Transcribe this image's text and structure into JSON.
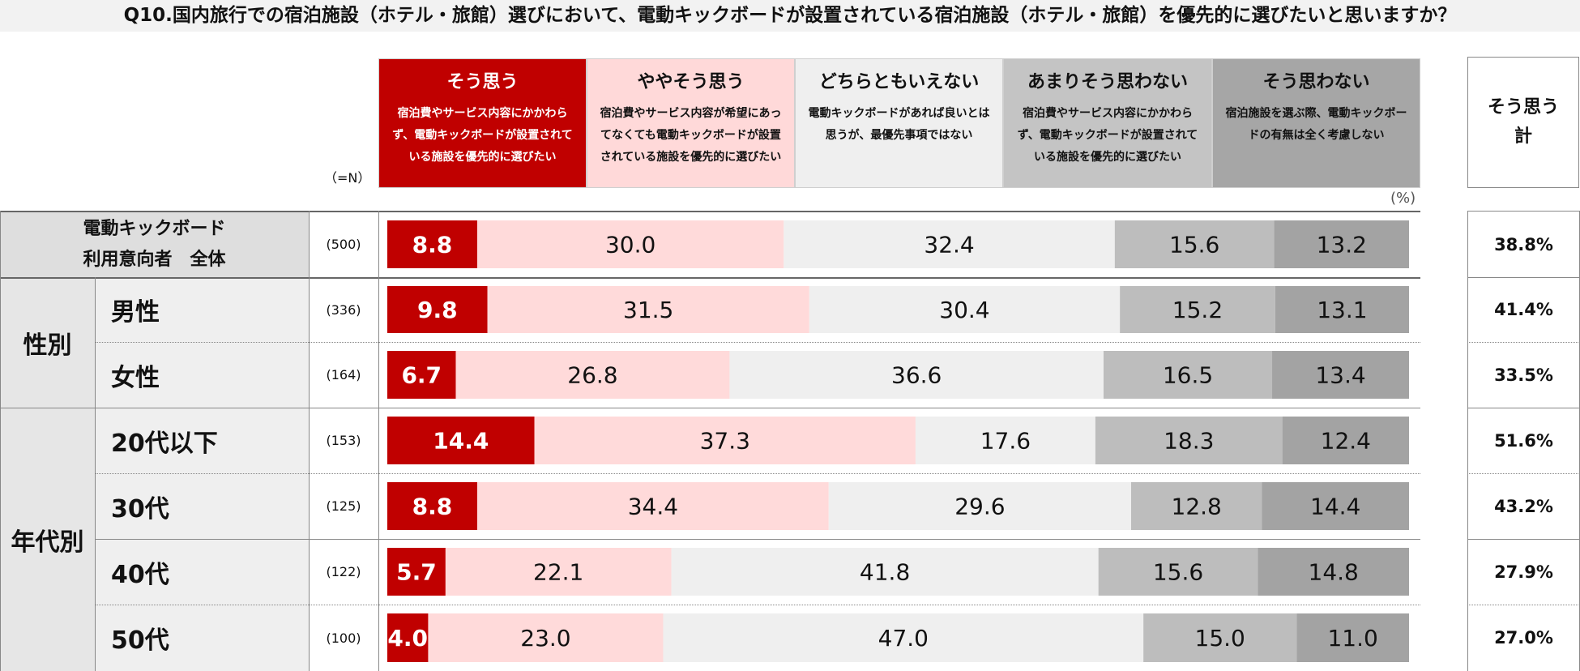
{
  "title": "Q10.国内旅行での宿泊施設（ホテル・旅館）選びにおいて、電動キックボードが設置されている宿泊施設（ホテル・旅館）を優先的に選びたいと思いますか？",
  "n_label": "（=N）",
  "percent_unit": "(%)",
  "total_header": [
    "そう思う",
    "計"
  ],
  "categories": [
    {
      "label": "そう思う",
      "desc": [
        "宿泊費やサービス内容にかかわら",
        "ず、電動キックボードが設置されて",
        "いる施設を優先的に選びたい"
      ]
    },
    {
      "label": "ややそう思う",
      "desc": [
        "宿泊費やサービス内容が希望にあっ",
        "てなくても電動キックボードが設置",
        "されている施設を優先的に選びたい"
      ]
    },
    {
      "label": "どちらともいえない",
      "desc": [
        "電動キックボードがあれば良いとは",
        "思うが、最優先事項ではない"
      ]
    },
    {
      "label": "あまりそう思わない",
      "desc": [
        "宿泊費やサービス内容にかかわら",
        "ず、電動キックボードが設置されて",
        "いる施設を優先的に選びたい"
      ]
    },
    {
      "label": "そう思わない",
      "desc": [
        "宿泊施設を選ぶ際、電動キックボー",
        "ドの有無は全く考慮しない"
      ]
    }
  ],
  "colors": {
    "header_bg": [
      "#c00000",
      "#ffd9d9",
      "#efefef",
      "#c4c4c4",
      "#a6a6a6"
    ],
    "header_text": [
      "#ffffff",
      "#111111",
      "#111111",
      "#111111",
      "#111111"
    ],
    "bar": [
      "#c00000",
      "#ffdada",
      "#efefef",
      "#bdbdbd",
      "#a3a3a3"
    ],
    "bar_text": [
      "#ffffff",
      "#111111",
      "#111111",
      "#111111",
      "#111111"
    ]
  },
  "groups": [
    {
      "label": "",
      "rows": [
        0
      ]
    },
    {
      "label": "性別",
      "rows": [
        1,
        2
      ]
    },
    {
      "label": "年代別",
      "rows": [
        3,
        4,
        5,
        6
      ]
    }
  ],
  "chart_data": {
    "type": "bar",
    "orientation": "horizontal-stacked-100",
    "unit": "%",
    "series_names": [
      "そう思う",
      "ややそう思う",
      "どちらともいえない",
      "あまりそう思わない",
      "そう思わない"
    ],
    "rows": [
      {
        "label": [
          "電動キックボード",
          "利用意向者　全体"
        ],
        "n": "(500)",
        "values": [
          8.8,
          30.0,
          32.4,
          15.6,
          13.2
        ],
        "total": "38.8%"
      },
      {
        "label": [
          "男性"
        ],
        "n": "(336)",
        "values": [
          9.8,
          31.5,
          30.4,
          15.2,
          13.1
        ],
        "total": "41.4%"
      },
      {
        "label": [
          "女性"
        ],
        "n": "(164)",
        "values": [
          6.7,
          26.8,
          36.6,
          16.5,
          13.4
        ],
        "total": "33.5%"
      },
      {
        "label": [
          "20代以下"
        ],
        "n": "(153)",
        "values": [
          14.4,
          37.3,
          17.6,
          18.3,
          12.4
        ],
        "total": "51.6%"
      },
      {
        "label": [
          "30代"
        ],
        "n": "(125)",
        "values": [
          8.8,
          34.4,
          29.6,
          12.8,
          14.4
        ],
        "total": "43.2%"
      },
      {
        "label": [
          "40代"
        ],
        "n": "(122)",
        "values": [
          5.7,
          22.1,
          41.8,
          15.6,
          14.8
        ],
        "total": "27.9%"
      },
      {
        "label": [
          "50代"
        ],
        "n": "(100)",
        "values": [
          4.0,
          23.0,
          47.0,
          15.0,
          11.0
        ],
        "total": "27.0%"
      }
    ]
  }
}
